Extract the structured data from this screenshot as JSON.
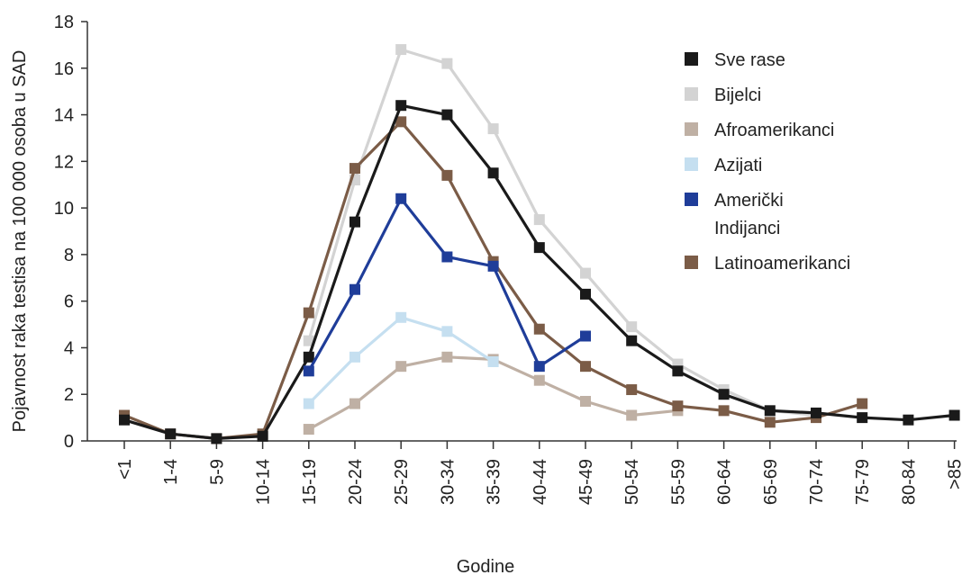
{
  "chart_data": {
    "type": "line",
    "categories": [
      "<1",
      "1-4",
      "5-9",
      "10-14",
      "15-19",
      "20-24",
      "25-29",
      "30-34",
      "35-39",
      "40-44",
      "45-49",
      "50-54",
      "55-59",
      "60-64",
      "65-69",
      "70-74",
      "75-79",
      "80-84",
      ">85"
    ],
    "xlabel": "Godine",
    "ylabel": "Pojavnost raka testisa na 100 000 osoba u SAD",
    "ylim": [
      0,
      18
    ],
    "yticks": [
      0,
      2,
      4,
      6,
      8,
      10,
      12,
      14,
      16,
      18
    ],
    "grid": false,
    "legend_position": "top-right",
    "series": [
      {
        "name": "Bijelci",
        "color": "#d3d3d3",
        "values": [
          null,
          null,
          null,
          null,
          4.3,
          11.2,
          16.8,
          16.2,
          13.4,
          9.5,
          7.2,
          4.9,
          3.3,
          2.2,
          1.3,
          1.1,
          null,
          null,
          null
        ]
      },
      {
        "name": "Afroamerikanci",
        "color": "#bfb0a4",
        "values": [
          null,
          null,
          null,
          null,
          0.5,
          1.6,
          3.2,
          3.6,
          3.5,
          2.6,
          1.7,
          1.1,
          1.3,
          null,
          null,
          null,
          null,
          null,
          null
        ]
      },
      {
        "name": "Azijati",
        "color": "#c5dff0",
        "values": [
          null,
          null,
          null,
          null,
          1.6,
          3.6,
          5.3,
          4.7,
          3.4,
          null,
          null,
          null,
          null,
          null,
          null,
          null,
          null,
          null,
          null
        ]
      },
      {
        "name": "Latinoamerikanci",
        "color": "#7b5c47",
        "values": [
          1.1,
          0.3,
          0.1,
          0.3,
          5.5,
          11.7,
          13.7,
          11.4,
          7.7,
          4.8,
          3.2,
          2.2,
          1.5,
          1.3,
          0.8,
          1.0,
          1.6,
          null,
          null
        ]
      },
      {
        "name": "Sve rase",
        "color": "#1a1a1a",
        "values": [
          0.9,
          0.3,
          0.1,
          0.2,
          3.6,
          9.4,
          14.4,
          14.0,
          11.5,
          8.3,
          6.3,
          4.3,
          3.0,
          2.0,
          1.3,
          1.2,
          1.0,
          0.9,
          1.1
        ]
      },
      {
        "name": "Američki Indijanci",
        "color": "#1f3d99",
        "values": [
          null,
          null,
          null,
          null,
          3.0,
          6.5,
          10.4,
          7.9,
          7.5,
          3.2,
          4.5,
          null,
          null,
          null,
          null,
          null,
          null,
          null,
          null
        ]
      }
    ],
    "legend": [
      {
        "label": "Sve rase",
        "color": "#1a1a1a",
        "lines": [
          "Sve rase"
        ]
      },
      {
        "label": "Bijelci",
        "color": "#d3d3d3",
        "lines": [
          "Bijelci"
        ]
      },
      {
        "label": "Afroamerikanci",
        "color": "#bfb0a4",
        "lines": [
          "Afroamerikanci"
        ]
      },
      {
        "label": "Azijati",
        "color": "#c5dff0",
        "lines": [
          "Azijati"
        ]
      },
      {
        "label": "Američki Indijanci",
        "color": "#1f3d99",
        "lines": [
          "Američki",
          "Indijanci"
        ]
      },
      {
        "label": "Latinoamerikanci",
        "color": "#7b5c47",
        "lines": [
          "Latinoamerikanci"
        ]
      }
    ]
  }
}
